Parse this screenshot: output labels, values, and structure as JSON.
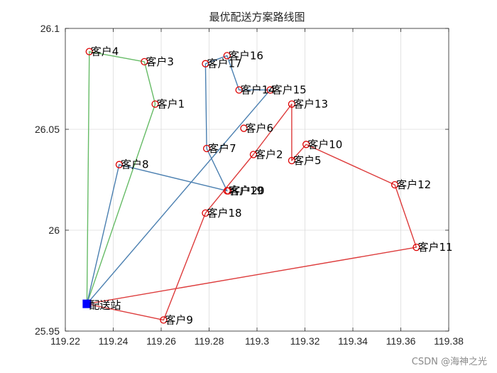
{
  "chart_data": {
    "type": "line",
    "title": "最优配送方案路线图",
    "xlabel": "",
    "ylabel": "",
    "xlim": [
      119.22,
      119.38
    ],
    "ylim": [
      25.95,
      26.1
    ],
    "xticks": [
      "119.22",
      "119.24",
      "119.26",
      "119.28",
      "119.3",
      "119.32",
      "119.34",
      "119.36",
      "119.38"
    ],
    "yticks": [
      "25.95",
      "26",
      "26.05",
      "26.1"
    ],
    "grid": true,
    "depot": {
      "label": "配送站",
      "x": 119.229,
      "y": 25.9635,
      "color": "#0000ff"
    },
    "customers": [
      {
        "label": "客户1",
        "x": 119.2575,
        "y": 26.0625
      },
      {
        "label": "客户2",
        "x": 119.2985,
        "y": 26.0375
      },
      {
        "label": "客户3",
        "x": 119.253,
        "y": 26.0835
      },
      {
        "label": "客户4",
        "x": 119.23,
        "y": 26.0885
      },
      {
        "label": "客户5",
        "x": 119.3145,
        "y": 26.0345
      },
      {
        "label": "客户6",
        "x": 119.2945,
        "y": 26.0505
      },
      {
        "label": "客户7",
        "x": 119.279,
        "y": 26.0405
      },
      {
        "label": "客户8",
        "x": 119.2425,
        "y": 26.0325
      },
      {
        "label": "客户9",
        "x": 119.261,
        "y": 25.9555
      },
      {
        "label": "客户10",
        "x": 119.3205,
        "y": 26.0425
      },
      {
        "label": "客户11",
        "x": 119.3665,
        "y": 25.9915
      },
      {
        "label": "客户12",
        "x": 119.3575,
        "y": 26.0225
      },
      {
        "label": "客户13",
        "x": 119.3145,
        "y": 26.0625
      },
      {
        "label": "客户14",
        "x": 119.2925,
        "y": 26.0695
      },
      {
        "label": "客户15",
        "x": 119.3055,
        "y": 26.0695
      },
      {
        "label": "客户16",
        "x": 119.2875,
        "y": 26.0865
      },
      {
        "label": "客户17",
        "x": 119.2785,
        "y": 26.0825
      },
      {
        "label": "客户18",
        "x": 119.2785,
        "y": 26.0085
      },
      {
        "label": "客户19",
        "x": 119.2875,
        "y": 26.0195
      },
      {
        "label": "客户20",
        "x": 119.288,
        "y": 26.0195
      }
    ],
    "series": [
      {
        "color": "#66bb66",
        "route": [
          "配送站",
          "客户1",
          "客户3",
          "客户4",
          "配送站"
        ]
      },
      {
        "color": "#4a7fb0",
        "route": [
          "配送站",
          "客户8",
          "客户19",
          "客户7",
          "客户17",
          "客户16",
          "客户14",
          "客户15",
          "配送站"
        ]
      },
      {
        "color": "#dd3b3b",
        "route": [
          "配送站",
          "客户9",
          "客户18",
          "客户2",
          "客户13",
          "客户5",
          "客户10",
          "客户12",
          "客户11",
          "配送站"
        ]
      }
    ],
    "marker_color": "#dd0000"
  },
  "watermark": "CSDN @海神之光"
}
